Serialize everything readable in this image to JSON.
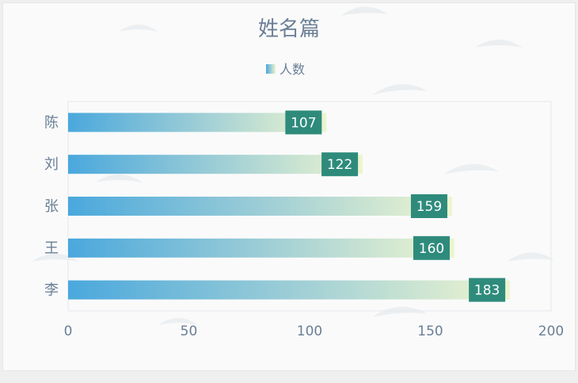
{
  "chart_data": {
    "type": "bar",
    "orientation": "horizontal",
    "title": "姓名篇",
    "legend": {
      "label": "人数",
      "placement": "top-center"
    },
    "categories": [
      "陈",
      "刘",
      "张",
      "王",
      "李"
    ],
    "series": [
      {
        "name": "人数",
        "values": [
          107,
          122,
          159,
          160,
          183
        ]
      }
    ],
    "xlim": [
      0,
      200
    ],
    "xticks": [
      0,
      50,
      100,
      150,
      200
    ],
    "grid": false,
    "colors": {
      "gradient_start": "#4aa8dd",
      "gradient_mid": "#9ccdd6",
      "gradient_end": "#eef5cf",
      "label_bg": "#2e8b7c",
      "label_text": "#ffffff",
      "text": "#6a7f96",
      "axis": "#e4e8ee"
    }
  }
}
